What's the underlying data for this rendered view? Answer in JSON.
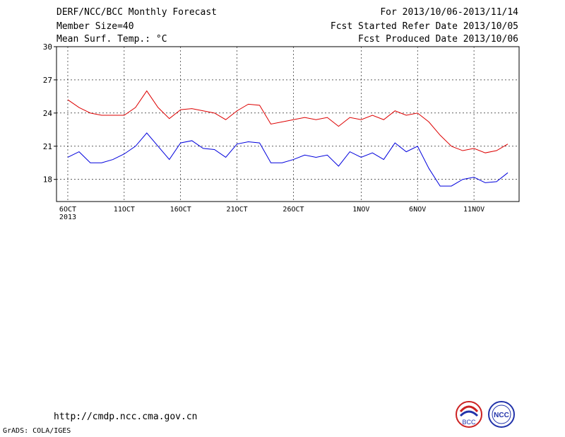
{
  "header": {
    "title": "DERF/NCC/BCC Monthly Forecast",
    "member": "Member Size=40",
    "variable": "Mean Surf. Temp.: °C",
    "period": "For 2013/10/06-2013/11/14",
    "started": "Fcst Started Refer Date 2013/10/05",
    "produced": "Fcst Produced Date 2013/10/06"
  },
  "footer": {
    "url": "http://cmdp.ncc.cma.gov.cn",
    "credit": "GrADS: COLA/IGES",
    "logo_left": "BCC",
    "logo_right": "NCC"
  },
  "colors": {
    "ensemble_range": "#0000dd",
    "spread_band": "#dd0000",
    "mean": "#000000",
    "box": "#d3d3d3",
    "observation": "#44dd44",
    "grid": "#000000"
  },
  "chart_data": [
    {
      "type": "line",
      "ylabel": "Mean Surf. Temp.: °C",
      "ylim": [
        16,
        30
      ],
      "yticks": [
        18,
        21,
        24,
        27,
        30
      ],
      "xtick_labels": [
        "6OCT\n2013",
        "11OCT",
        "16OCT",
        "21OCT",
        "26OCT",
        "1NOV",
        "6NOV",
        "11NOV"
      ],
      "x_dates": [
        "2013-10-06",
        "2013-10-07",
        "2013-10-08",
        "2013-10-09",
        "2013-10-10",
        "2013-10-11",
        "2013-10-12",
        "2013-10-13",
        "2013-10-14",
        "2013-10-15",
        "2013-10-16",
        "2013-10-17",
        "2013-10-18",
        "2013-10-19",
        "2013-10-20",
        "2013-10-21",
        "2013-10-22",
        "2013-10-23",
        "2013-10-24",
        "2013-10-25",
        "2013-10-26",
        "2013-10-27",
        "2013-10-28",
        "2013-10-29",
        "2013-10-30",
        "2013-10-31",
        "2013-11-01",
        "2013-11-02",
        "2013-11-03",
        "2013-11-04",
        "2013-11-05",
        "2013-11-06",
        "2013-11-07",
        "2013-11-08",
        "2013-11-09",
        "2013-11-10",
        "2013-11-11",
        "2013-11-12",
        "2013-11-13",
        "2013-11-14"
      ],
      "grid": true,
      "series": [
        {
          "role": "max",
          "values": [
            20.0,
            20.5,
            19.5,
            19.5,
            19.8,
            20.3,
            21.0,
            22.2,
            21.0,
            19.8,
            21.3,
            21.5,
            20.8,
            20.7,
            20.0,
            21.2,
            21.4,
            21.3,
            19.5,
            19.5,
            19.8,
            20.2,
            20.0,
            20.2,
            19.2,
            20.5,
            20.0,
            20.4,
            19.8,
            21.3,
            20.5,
            21.0,
            19.0,
            17.4,
            17.4,
            18.0,
            18.2,
            17.7,
            17.8,
            18.6
          ]
        },
        {
          "role": "upper",
          "values": [
            25.2,
            24.5,
            24.0,
            23.8,
            23.8,
            23.8,
            24.5,
            26.0,
            24.5,
            23.5,
            24.3,
            24.4,
            24.2,
            24.0,
            23.4,
            24.2,
            24.8,
            24.7,
            23.0,
            23.2,
            23.4,
            23.6,
            23.4,
            23.6,
            22.8,
            23.6,
            23.4,
            23.8,
            23.4,
            24.2,
            23.8,
            24.0,
            23.2,
            22.0,
            21.0,
            20.6,
            20.8,
            20.4,
            20.6,
            21.2
          ]
        }
      ]
    }
  ]
}
